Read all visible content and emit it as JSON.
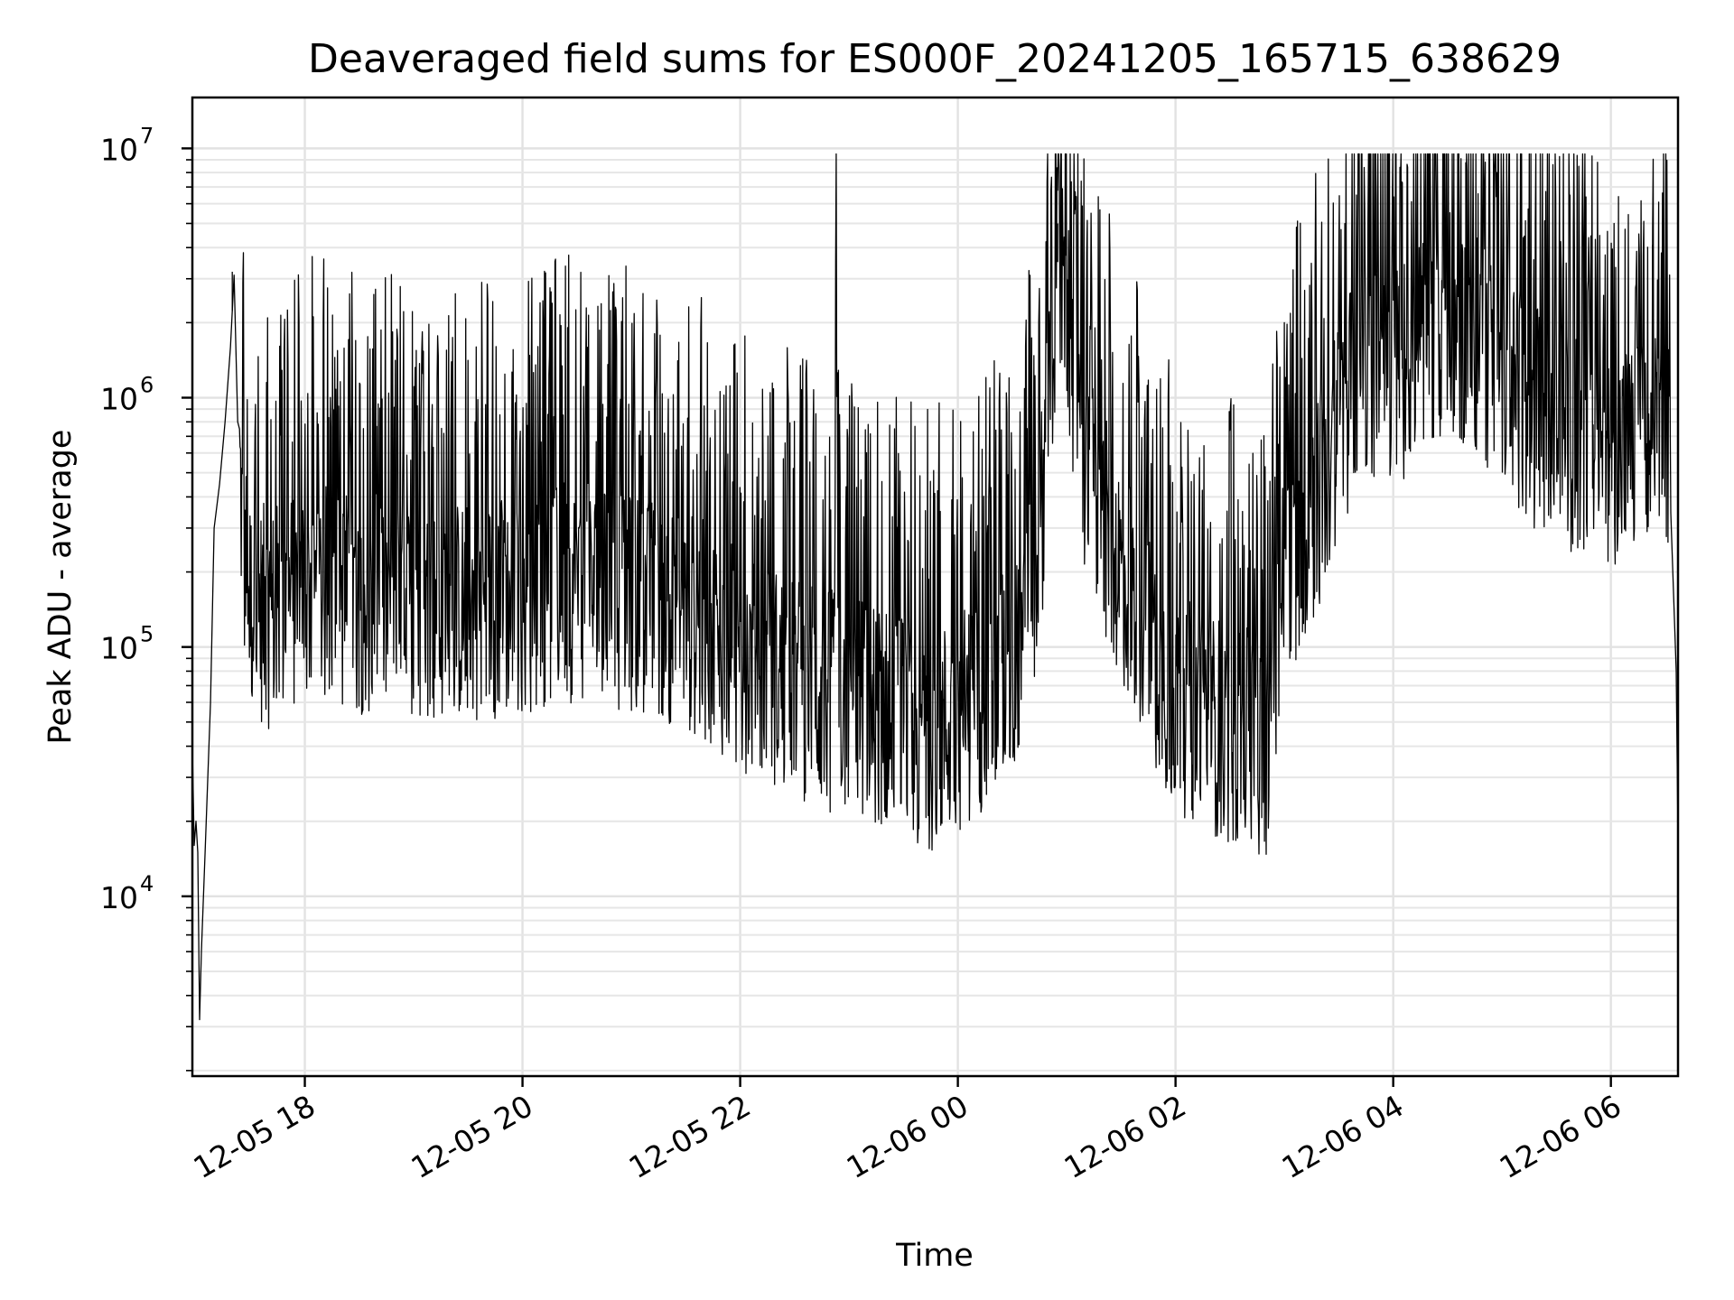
{
  "chart_data": {
    "type": "line",
    "title": "Deaveraged field sums for ES000F_20241205_165715_638629",
    "xlabel": "Time",
    "ylabel": "Peak ADU - average",
    "xscale": "time",
    "yscale": "log",
    "xlim": [
      "2024-12-05 16:58",
      "2024-12-06 06:37"
    ],
    "ylim": [
      1900,
      16000000
    ],
    "grid": true,
    "x_ticks": [
      {
        "value": "2024-12-05 18:00",
        "label": "12-05 18"
      },
      {
        "value": "2024-12-05 20:00",
        "label": "12-05 20"
      },
      {
        "value": "2024-12-05 22:00",
        "label": "12-05 22"
      },
      {
        "value": "2024-12-06 00:00",
        "label": "12-06 00"
      },
      {
        "value": "2024-12-06 02:00",
        "label": "12-06 02"
      },
      {
        "value": "2024-12-06 04:00",
        "label": "12-06 04"
      },
      {
        "value": "2024-12-06 06:00",
        "label": "12-06 06"
      }
    ],
    "y_ticks": [
      {
        "value": 10000,
        "base": "10",
        "exp": "4"
      },
      {
        "value": 100000,
        "base": "10",
        "exp": "5"
      },
      {
        "value": 1000000,
        "base": "10",
        "exp": "6"
      },
      {
        "value": 10000000,
        "base": "10",
        "exp": "7"
      }
    ],
    "series": [
      {
        "color": "#000000",
        "points": [
          [
            "2024-12-05 16:58",
            2000
          ],
          [
            "2024-12-05 16:58",
            40000
          ],
          [
            "2024-12-05 16:59",
            16000
          ],
          [
            "2024-12-05 17:00",
            20000
          ],
          [
            "2024-12-05 17:01",
            15000
          ],
          [
            "2024-12-05 17:02",
            3200
          ],
          [
            "2024-12-05 17:03",
            6000
          ],
          [
            "2024-12-05 17:05",
            15000
          ],
          [
            "2024-12-05 17:08",
            60000
          ],
          [
            "2024-12-05 17:10",
            300000
          ],
          [
            "2024-12-05 17:13",
            450000
          ],
          [
            "2024-12-05 17:16",
            800000
          ],
          [
            "2024-12-05 17:19",
            1600000
          ],
          [
            "2024-12-05 17:21",
            3100000
          ],
          [
            "2024-12-05 17:23",
            800000
          ],
          [
            "2024-12-05 17:26",
            250000
          ],
          [
            "2024-12-05 17:30",
            150000
          ],
          [
            "2024-12-05 17:40",
            130000
          ],
          [
            "2024-12-05 18:00",
            170000
          ],
          [
            "2024-12-05 18:30",
            150000
          ],
          [
            "2024-12-05 19:00",
            140000
          ],
          [
            "2024-12-05 19:30",
            140000
          ],
          [
            "2024-12-05 20:00",
            150000
          ],
          [
            "2024-12-05 20:30",
            170000
          ],
          [
            "2024-12-05 21:00",
            150000
          ],
          [
            "2024-12-05 21:30",
            130000
          ],
          [
            "2024-12-05 22:00",
            90000
          ],
          [
            "2024-12-05 22:30",
            70000
          ],
          [
            "2024-12-05 22:52",
            60000
          ],
          [
            "2024-12-05 22:53",
            10000000
          ],
          [
            "2024-12-05 22:54",
            60000
          ],
          [
            "2024-12-05 23:30",
            50000
          ],
          [
            "2024-12-05 23:40",
            40000
          ],
          [
            "2024-12-06 00:00",
            50000
          ],
          [
            "2024-12-06 00:30",
            80000
          ],
          [
            "2024-12-06 00:45",
            250000
          ],
          [
            "2024-12-06 00:55",
            3500000
          ],
          [
            "2024-12-06 01:00",
            2000000
          ],
          [
            "2024-12-06 01:10",
            500000
          ],
          [
            "2024-12-06 01:30",
            200000
          ],
          [
            "2024-12-06 02:00",
            60000
          ],
          [
            "2024-12-06 02:30",
            45000
          ],
          [
            "2024-12-06 02:50",
            40000
          ],
          [
            "2024-12-06 03:00",
            200000
          ],
          [
            "2024-12-06 03:20",
            400000
          ],
          [
            "2024-12-06 03:40",
            1300000
          ],
          [
            "2024-12-06 04:00",
            1200000
          ],
          [
            "2024-12-06 04:30",
            2000000
          ],
          [
            "2024-12-06 04:50",
            1500000
          ],
          [
            "2024-12-06 05:20",
            800000
          ],
          [
            "2024-12-06 05:50",
            600000
          ],
          [
            "2024-12-06 06:20",
            600000
          ],
          [
            "2024-12-06 06:33",
            700000
          ],
          [
            "2024-12-06 06:36",
            80000
          ],
          [
            "2024-12-06 06:37",
            17000
          ]
        ],
        "spikes": [
          [
            "2024-12-05 17:20",
            3200000
          ],
          [
            "2024-12-05 22:53",
            10000000
          ],
          [
            "2024-12-06 00:55",
            5000000
          ],
          [
            "2024-12-06 04:05",
            7300000
          ],
          [
            "2024-12-06 04:40",
            8800000
          ],
          [
            "2024-12-06 06:23",
            4100000
          ]
        ]
      }
    ]
  }
}
